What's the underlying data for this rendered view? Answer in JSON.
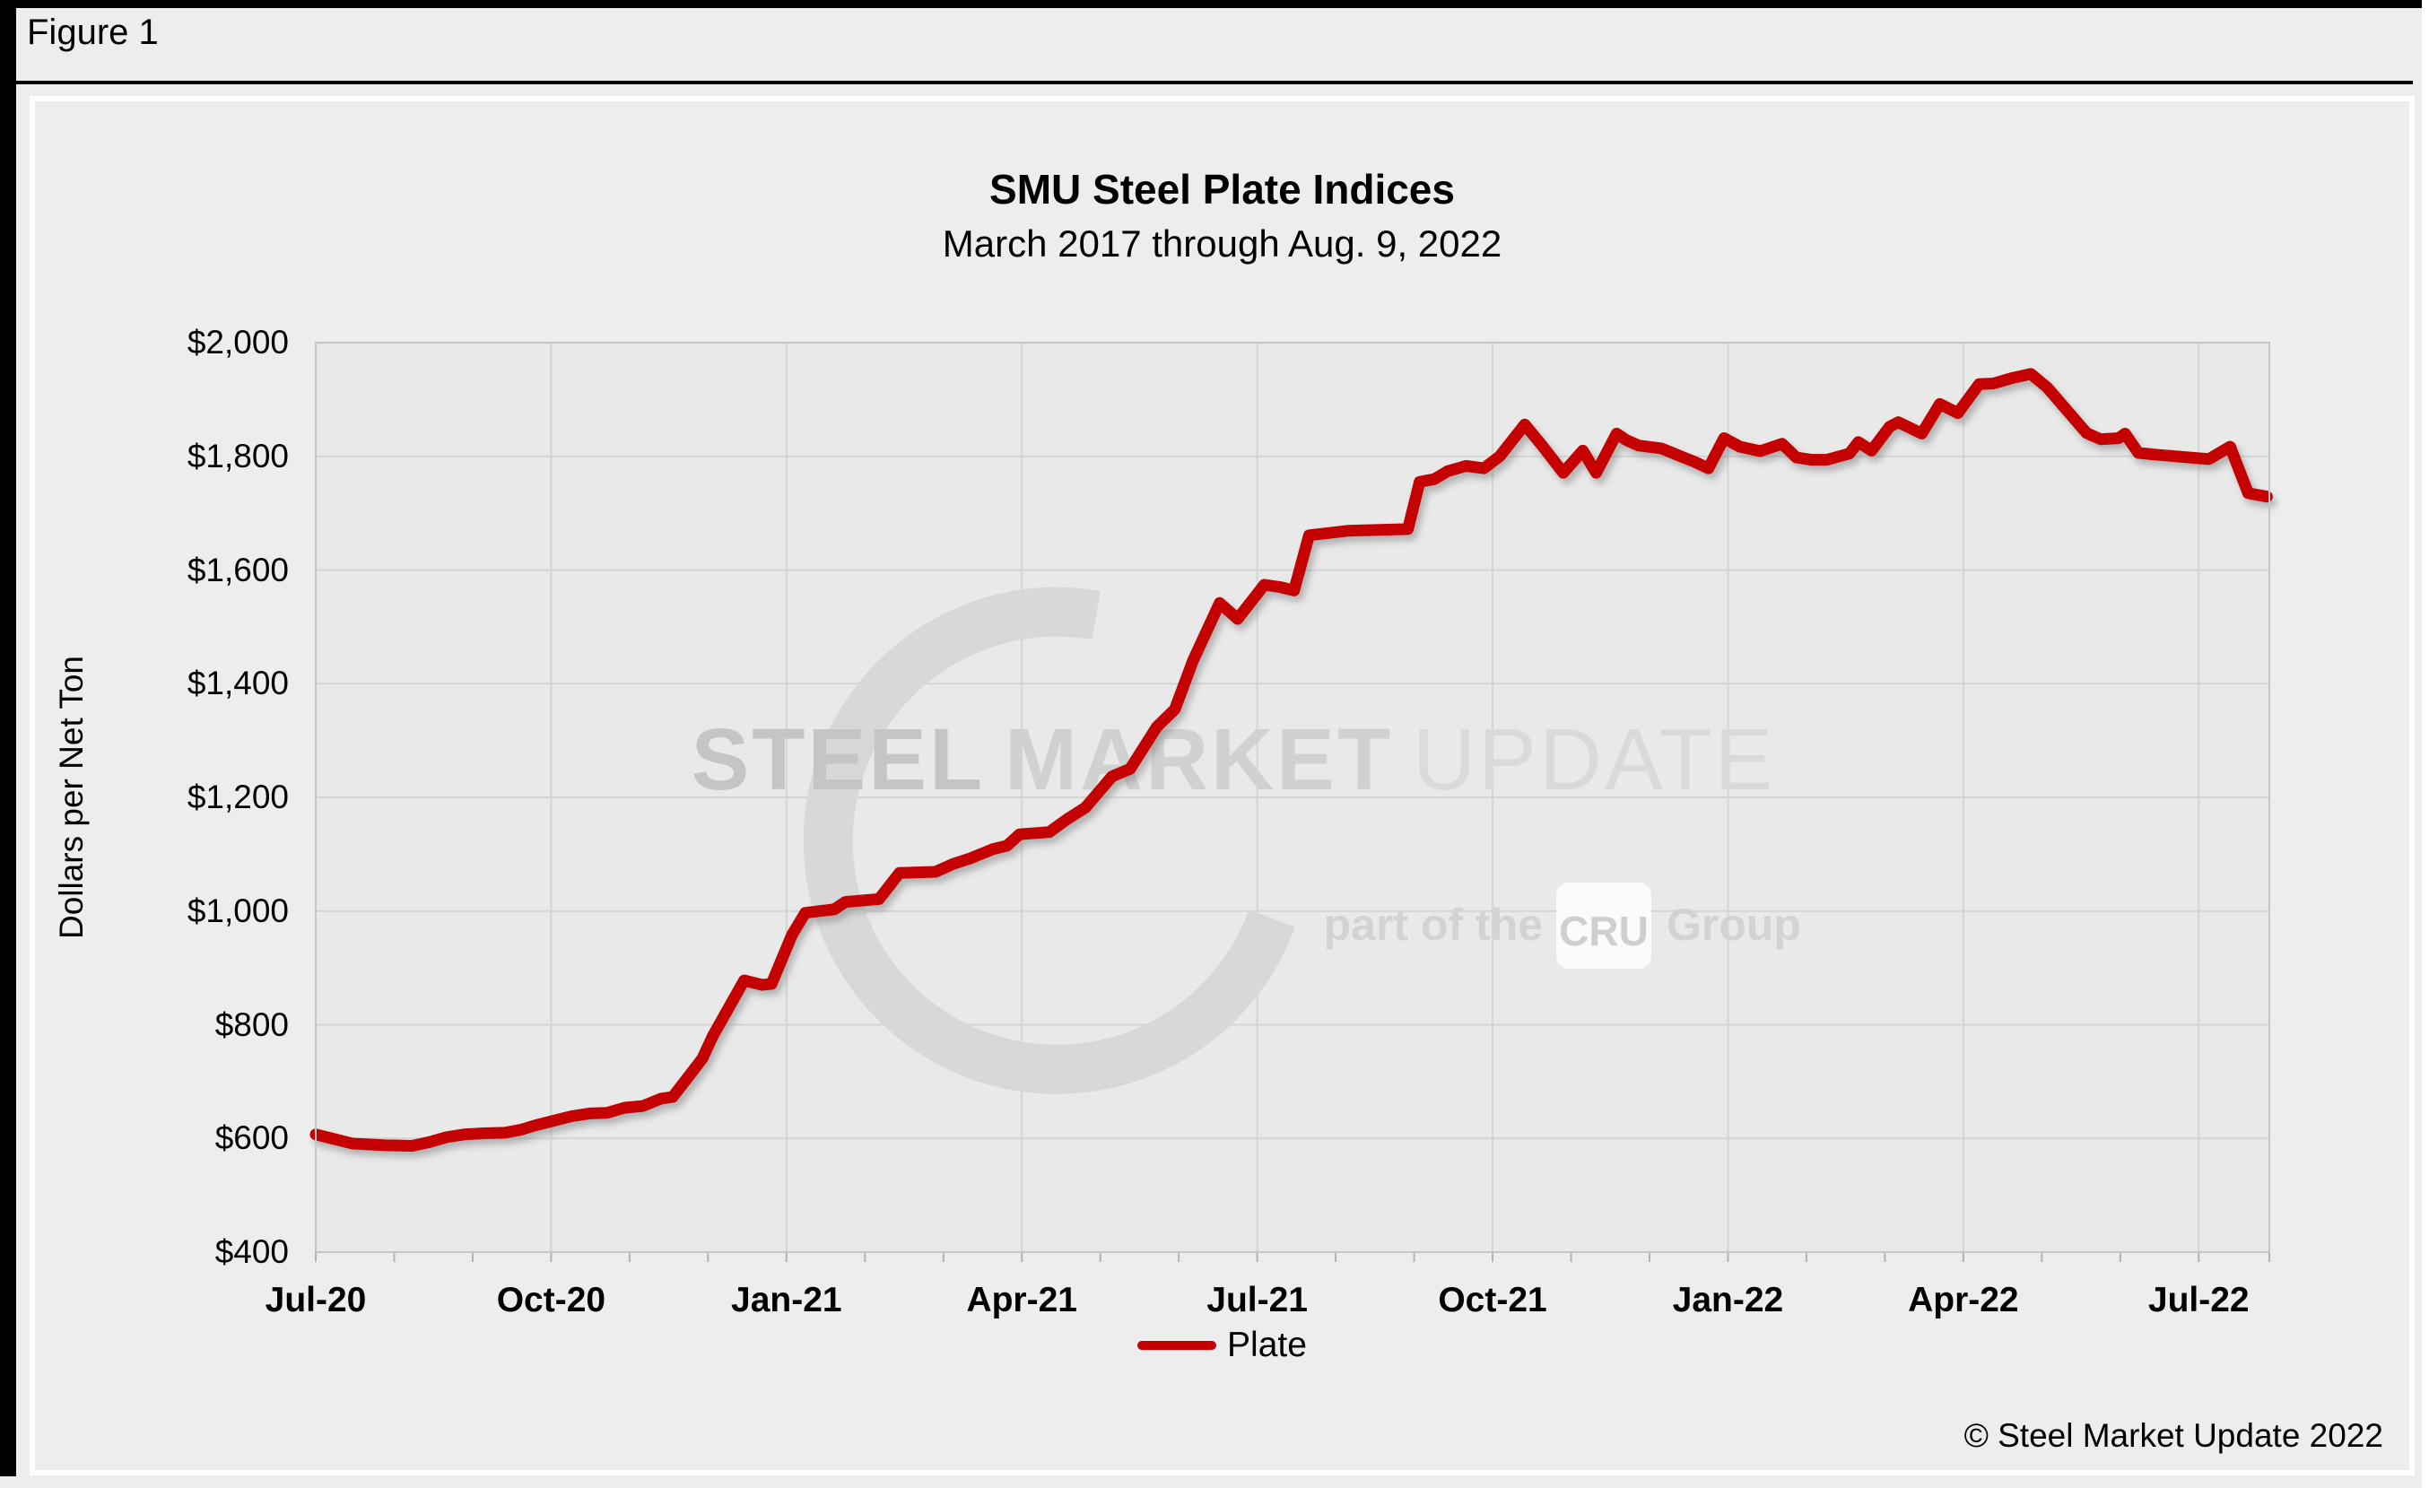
{
  "figure_label": "Figure 1",
  "footer": {
    "copyright": "© Steel Market Update 2022"
  },
  "watermark": {
    "steel": "STEEL",
    "market": "MARKET",
    "update": "UPDATE",
    "part_of_the": "part of the",
    "cru": "CRU",
    "group": "Group"
  },
  "colors": {
    "line": "#c40000",
    "plot_bg": "#e9e9e9",
    "grid": "#d4d4d4",
    "page_bg": "#ededed"
  },
  "chart_data": {
    "type": "line",
    "title": "SMU Steel Plate Indices",
    "subtitle": "March 2017 through Aug. 9, 2022",
    "xlabel": "",
    "ylabel": "Dollars per Net Ton",
    "ylim": [
      400,
      2000
    ],
    "y_tick_step": 200,
    "y_ticks": [
      "$400",
      "$600",
      "$800",
      "$1,000",
      "$1,200",
      "$1,400",
      "$1,600",
      "$1,800",
      "$2,000"
    ],
    "x_range_months": [
      0,
      24.9
    ],
    "x_ticks": [
      {
        "m": 0,
        "label": "Jul-20"
      },
      {
        "m": 3,
        "label": "Oct-20"
      },
      {
        "m": 6,
        "label": "Jan-21"
      },
      {
        "m": 9,
        "label": "Apr-21"
      },
      {
        "m": 12,
        "label": "Jul-21"
      },
      {
        "m": 15,
        "label": "Oct-21"
      },
      {
        "m": 18,
        "label": "Jan-22"
      },
      {
        "m": 21,
        "label": "Apr-22"
      },
      {
        "m": 24,
        "label": "Jul-22"
      }
    ],
    "grid": true,
    "legend": {
      "position": "bottom",
      "entries": [
        {
          "label": "Plate",
          "color": "#c40000"
        }
      ]
    },
    "series": [
      {
        "name": "Plate",
        "color": "#c40000",
        "units": "dollars per net ton",
        "points_format": [
          "months_since_jul_2020",
          "value_usd_per_net_ton",
          "approx_date"
        ],
        "points": [
          [
            0,
            607,
            "2020-07-01"
          ],
          [
            0.47,
            591,
            "2020-07-15"
          ],
          [
            0.89,
            588,
            "2020-07-28"
          ],
          [
            1.23,
            587,
            "2020-08-07"
          ],
          [
            1.46,
            594,
            "2020-08-14"
          ],
          [
            1.66,
            602,
            "2020-08-21"
          ],
          [
            1.89,
            607,
            "2020-08-28"
          ],
          [
            2.15,
            609,
            "2020-09-04"
          ],
          [
            2.41,
            610,
            "2020-09-12"
          ],
          [
            2.61,
            615,
            "2020-09-18"
          ],
          [
            2.8,
            623,
            "2020-09-24"
          ],
          [
            3.03,
            631,
            "2020-10-01"
          ],
          [
            3.26,
            639,
            "2020-10-08"
          ],
          [
            3.49,
            644,
            "2020-10-15"
          ],
          [
            3.71,
            645,
            "2020-10-22"
          ],
          [
            3.94,
            654,
            "2020-10-29"
          ],
          [
            4.17,
            657,
            "2020-11-05"
          ],
          [
            4.4,
            670,
            "2020-11-12"
          ],
          [
            4.55,
            673,
            "2020-11-17"
          ],
          [
            4.78,
            714,
            "2020-11-24"
          ],
          [
            4.93,
            741,
            "2020-11-28"
          ],
          [
            5.06,
            780,
            "2020-12-02"
          ],
          [
            5.46,
            878,
            "2020-12-15"
          ],
          [
            5.69,
            870,
            "2020-12-22"
          ],
          [
            5.81,
            872,
            "2020-12-26"
          ],
          [
            6.07,
            958,
            "2021-01-03"
          ],
          [
            6.24,
            997,
            "2021-01-08"
          ],
          [
            6.61,
            1003,
            "2021-01-19"
          ],
          [
            6.75,
            1016,
            "2021-01-24"
          ],
          [
            7.18,
            1021,
            "2021-02-06"
          ],
          [
            7.44,
            1067,
            "2021-02-13"
          ],
          [
            7.9,
            1069,
            "2021-02-27"
          ],
          [
            8.13,
            1083,
            "2021-03-06"
          ],
          [
            8.35,
            1093,
            "2021-03-13"
          ],
          [
            8.63,
            1109,
            "2021-03-21"
          ],
          [
            8.81,
            1115,
            "2021-03-27"
          ],
          [
            8.97,
            1135,
            "2021-04-01"
          ],
          [
            9.35,
            1139,
            "2021-04-12"
          ],
          [
            9.58,
            1162,
            "2021-04-19"
          ],
          [
            9.81,
            1182,
            "2021-04-26"
          ],
          [
            10.15,
            1237,
            "2021-05-07"
          ],
          [
            10.38,
            1250,
            "2021-05-14"
          ],
          [
            10.72,
            1324,
            "2021-05-24"
          ],
          [
            10.95,
            1355,
            "2021-05-31"
          ],
          [
            11.18,
            1440,
            "2021-06-07"
          ],
          [
            11.52,
            1542,
            "2021-06-17"
          ],
          [
            11.75,
            1514,
            "2021-06-24"
          ],
          [
            12.09,
            1574,
            "2021-07-05"
          ],
          [
            12.29,
            1570,
            "2021-07-11"
          ],
          [
            12.47,
            1564,
            "2021-07-16"
          ],
          [
            12.66,
            1661,
            "2021-07-22"
          ],
          [
            13.15,
            1669,
            "2021-08-06"
          ],
          [
            13.92,
            1672,
            "2021-08-29"
          ],
          [
            14.07,
            1755,
            "2021-09-03"
          ],
          [
            14.26,
            1760,
            "2021-09-09"
          ],
          [
            14.43,
            1774,
            "2021-09-14"
          ],
          [
            14.66,
            1783,
            "2021-09-21"
          ],
          [
            14.89,
            1779,
            "2021-09-28"
          ],
          [
            15.09,
            1800,
            "2021-10-04"
          ],
          [
            15.41,
            1856,
            "2021-10-14"
          ],
          [
            15.63,
            1819,
            "2021-10-21"
          ],
          [
            15.9,
            1771,
            "2021-10-29"
          ],
          [
            16.15,
            1810,
            "2021-11-05"
          ],
          [
            16.32,
            1771,
            "2021-11-10"
          ],
          [
            16.58,
            1840,
            "2021-11-18"
          ],
          [
            16.7,
            1829,
            "2021-11-22"
          ],
          [
            16.86,
            1819,
            "2021-11-27"
          ],
          [
            17.15,
            1814,
            "2021-12-06"
          ],
          [
            17.38,
            1801,
            "2021-12-13"
          ],
          [
            17.58,
            1790,
            "2021-12-19"
          ],
          [
            17.75,
            1779,
            "2021-12-24"
          ],
          [
            17.95,
            1832,
            "2021-12-30"
          ],
          [
            18.15,
            1817,
            "2022-01-05"
          ],
          [
            18.41,
            1809,
            "2022-01-13"
          ],
          [
            18.69,
            1822,
            "2022-01-22"
          ],
          [
            18.87,
            1798,
            "2022-01-27"
          ],
          [
            19.06,
            1794,
            "2022-02-02"
          ],
          [
            19.26,
            1794,
            "2022-02-08"
          ],
          [
            19.55,
            1805,
            "2022-02-17"
          ],
          [
            19.66,
            1825,
            "2022-02-20"
          ],
          [
            19.83,
            1810,
            "2022-02-26"
          ],
          [
            20.06,
            1852,
            "2022-03-05"
          ],
          [
            20.17,
            1860,
            "2022-03-08"
          ],
          [
            20.47,
            1840,
            "2022-03-17"
          ],
          [
            20.7,
            1892,
            "2022-03-24"
          ],
          [
            20.93,
            1876,
            "2022-03-31"
          ],
          [
            21.2,
            1927,
            "2022-04-08"
          ],
          [
            21.38,
            1928,
            "2022-04-14"
          ],
          [
            21.63,
            1938,
            "2022-04-21"
          ],
          [
            21.86,
            1945,
            "2022-04-28"
          ],
          [
            22.07,
            1921,
            "2022-05-05"
          ],
          [
            22.57,
            1841,
            "2022-05-20"
          ],
          [
            22.75,
            1830,
            "2022-05-25"
          ],
          [
            22.98,
            1832,
            "2022-06-01"
          ],
          [
            23.06,
            1840,
            "2022-06-04"
          ],
          [
            23.23,
            1806,
            "2022-06-09"
          ],
          [
            23.44,
            1803,
            "2022-06-15"
          ],
          [
            24.13,
            1795,
            "2022-07-12"
          ],
          [
            24.4,
            1817,
            "2022-07-26"
          ],
          [
            24.63,
            1735,
            "2022-08-02"
          ],
          [
            24.87,
            1729,
            "2022-08-09"
          ]
        ]
      }
    ]
  }
}
